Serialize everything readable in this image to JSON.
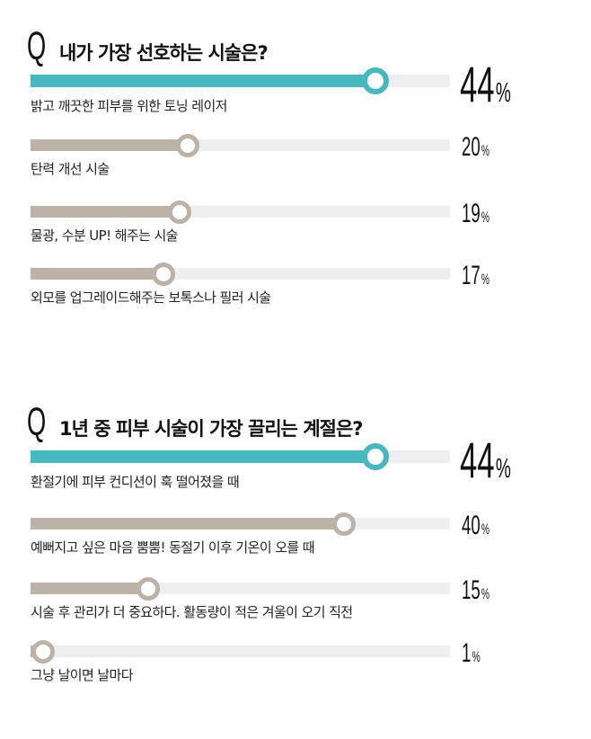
{
  "colors": {
    "accent": "#47b8be",
    "neutral": "#bdb2a8",
    "track": "#efefef"
  },
  "chart_data": [
    {
      "type": "bar",
      "qmark": "Q",
      "title": "내가 가장 선호하는 시술은?",
      "categories": [
        "밝고 깨끗한 피부를 위한 토닝 레이저",
        "탄력 개선 시술",
        "물광, 수분 UP! 해주는 시술",
        "외모를 업그레이드해주는 보톡스나 필러 시술"
      ],
      "values": [
        44,
        20,
        19,
        17
      ],
      "unit": "%",
      "highlight": 0,
      "ylim": [
        0,
        100
      ]
    },
    {
      "type": "bar",
      "qmark": "Q",
      "title": "1년 중 피부 시술이 가장 끌리는 계절은?",
      "categories": [
        "환절기에 피부 컨디션이 훅 떨어졌을 때",
        "예뻐지고 싶은 마음 뿜뿜! 동절기 이후 기온이 오를 때",
        "시술 후 관리가 더 중요하다. 활동량이 적은 겨울이 오기 직전",
        "그냥 날이면 날마다"
      ],
      "values": [
        44,
        40,
        15,
        1
      ],
      "unit": "%",
      "highlight": 0,
      "ylim": [
        0,
        100
      ]
    }
  ]
}
